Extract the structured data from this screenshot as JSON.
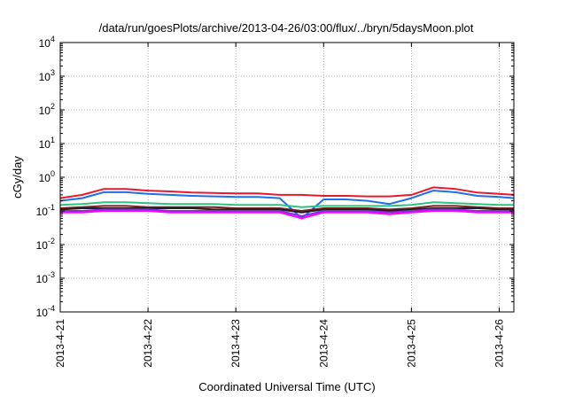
{
  "chart_data": {
    "type": "line",
    "title": "/data/run/goesPlots/archive/2013-04-26/03:00/flux/../bryn/5daysMoon.plot",
    "xlabel": "Coordinated Universal Time (UTC)",
    "ylabel": "cGy/day",
    "y_scale": "log",
    "ylim": [
      0.0001,
      10000
    ],
    "xlim": [
      "2013-04-21",
      "2013-04-26 04:00"
    ],
    "grid": true,
    "x_ticks": [
      "2013-4-21",
      "2013-4-22",
      "2013-4-23",
      "2013-4-24",
      "2013-4-25",
      "2013-4-26"
    ],
    "y_ticks": [
      {
        "base": "10",
        "exp": "-4",
        "value": 0.0001
      },
      {
        "base": "10",
        "exp": "-3",
        "value": 0.001
      },
      {
        "base": "10",
        "exp": "-2",
        "value": 0.01
      },
      {
        "base": "10",
        "exp": "-1",
        "value": 0.1
      },
      {
        "base": "10",
        "exp": "0",
        "value": 1
      },
      {
        "base": "10",
        "exp": "1",
        "value": 10
      },
      {
        "base": "10",
        "exp": "2",
        "value": 100
      },
      {
        "base": "10",
        "exp": "3",
        "value": 1000
      },
      {
        "base": "10",
        "exp": "4",
        "value": 10000
      }
    ],
    "x": [
      "2013-04-21 00:00",
      "2013-04-21 06:00",
      "2013-04-21 12:00",
      "2013-04-21 18:00",
      "2013-04-22 00:00",
      "2013-04-22 06:00",
      "2013-04-22 12:00",
      "2013-04-22 18:00",
      "2013-04-23 00:00",
      "2013-04-23 06:00",
      "2013-04-23 12:00",
      "2013-04-23 18:00",
      "2013-04-24 00:00",
      "2013-04-24 06:00",
      "2013-04-24 12:00",
      "2013-04-24 18:00",
      "2013-04-25 00:00",
      "2013-04-25 06:00",
      "2013-04-25 12:00",
      "2013-04-25 18:00",
      "2013-04-26 00:00",
      "2013-04-26 04:00"
    ],
    "series": [
      {
        "color": "#e8192c",
        "values": [
          0.24,
          0.3,
          0.45,
          0.45,
          0.4,
          0.38,
          0.35,
          0.34,
          0.33,
          0.33,
          0.3,
          0.3,
          0.28,
          0.28,
          0.27,
          0.27,
          0.3,
          0.5,
          0.45,
          0.35,
          0.32,
          0.3
        ]
      },
      {
        "color": "#1e6fe8",
        "values": [
          0.2,
          0.24,
          0.36,
          0.36,
          0.32,
          0.3,
          0.28,
          0.27,
          0.26,
          0.26,
          0.24,
          0.06,
          0.22,
          0.22,
          0.2,
          0.16,
          0.24,
          0.4,
          0.36,
          0.28,
          0.26,
          0.24
        ]
      },
      {
        "color": "#2ec27e",
        "values": [
          0.15,
          0.16,
          0.18,
          0.18,
          0.17,
          0.16,
          0.16,
          0.16,
          0.15,
          0.15,
          0.15,
          0.13,
          0.14,
          0.14,
          0.14,
          0.14,
          0.15,
          0.18,
          0.17,
          0.16,
          0.15,
          0.15
        ]
      },
      {
        "color": "#7a1f1f",
        "values": [
          0.12,
          0.13,
          0.14,
          0.14,
          0.13,
          0.13,
          0.13,
          0.13,
          0.12,
          0.12,
          0.12,
          0.1,
          0.12,
          0.12,
          0.12,
          0.11,
          0.12,
          0.14,
          0.14,
          0.13,
          0.12,
          0.12
        ]
      },
      {
        "color": "#202020",
        "values": [
          0.11,
          0.12,
          0.12,
          0.12,
          0.12,
          0.12,
          0.12,
          0.11,
          0.11,
          0.11,
          0.11,
          0.09,
          0.11,
          0.11,
          0.11,
          0.1,
          0.11,
          0.12,
          0.12,
          0.12,
          0.11,
          0.11
        ]
      },
      {
        "color": "#8a2be2",
        "values": [
          0.1,
          0.1,
          0.11,
          0.11,
          0.11,
          0.1,
          0.1,
          0.1,
          0.1,
          0.1,
          0.1,
          0.07,
          0.1,
          0.1,
          0.1,
          0.09,
          0.1,
          0.11,
          0.11,
          0.1,
          0.1,
          0.1
        ]
      },
      {
        "color": "#ff00ff",
        "values": [
          0.09,
          0.09,
          0.1,
          0.1,
          0.1,
          0.09,
          0.09,
          0.09,
          0.09,
          0.09,
          0.09,
          0.06,
          0.09,
          0.09,
          0.09,
          0.08,
          0.09,
          0.1,
          0.1,
          0.09,
          0.09,
          0.09
        ]
      }
    ]
  }
}
